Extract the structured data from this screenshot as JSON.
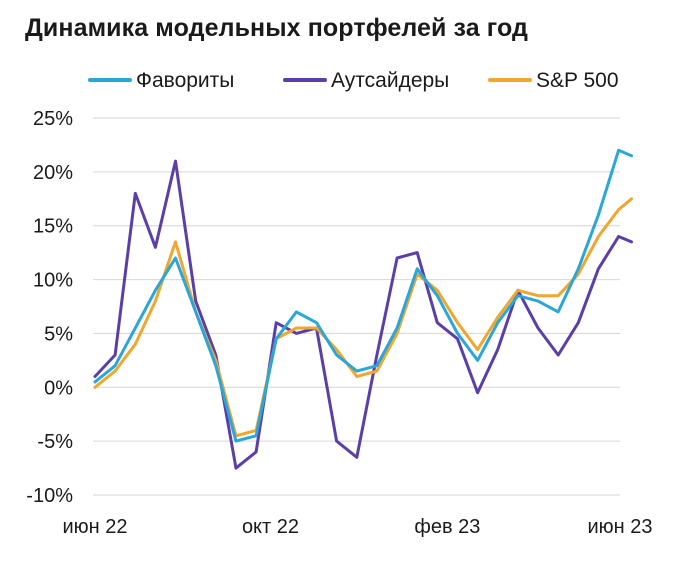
{
  "chart_data": {
    "type": "line",
    "title": "Динамика модельных портфелей за год",
    "xlabel": "",
    "ylabel": "",
    "ylim": [
      -10,
      25
    ],
    "y_ticks": [
      {
        "value": 25,
        "label": "25%"
      },
      {
        "value": 20,
        "label": "20%"
      },
      {
        "value": 15,
        "label": "15%"
      },
      {
        "value": 10,
        "label": "10%"
      },
      {
        "value": 5,
        "label": "5%"
      },
      {
        "value": 0,
        "label": "0%"
      },
      {
        "value": -5,
        "label": "-5%"
      },
      {
        "value": -10,
        "label": "-10%"
      }
    ],
    "x_ticks": [
      {
        "date": "2022-06-01",
        "label": "июн 22"
      },
      {
        "date": "2022-10-01",
        "label": "окт 22"
      },
      {
        "date": "2023-02-01",
        "label": "фев 23"
      },
      {
        "date": "2023-06-01",
        "label": "июн 23"
      }
    ],
    "grid": true,
    "legend_position": "top",
    "x": [
      "2022-06-01",
      "2022-06-15",
      "2022-06-29",
      "2022-07-13",
      "2022-07-27",
      "2022-08-10",
      "2022-08-24",
      "2022-09-07",
      "2022-09-21",
      "2022-10-05",
      "2022-10-19",
      "2022-11-02",
      "2022-11-16",
      "2022-11-30",
      "2022-12-14",
      "2022-12-28",
      "2023-01-11",
      "2023-01-25",
      "2023-02-08",
      "2023-02-22",
      "2023-03-08",
      "2023-03-22",
      "2023-04-05",
      "2023-04-19",
      "2023-05-03",
      "2023-05-17",
      "2023-05-31",
      "2023-06-09"
    ],
    "series": [
      {
        "name": "Фавориты",
        "color": "#2aa6d8",
        "values": [
          0.5,
          2.0,
          5.5,
          9.0,
          12.0,
          7.0,
          2.0,
          -5.0,
          -4.5,
          4.5,
          7.0,
          6.0,
          3.0,
          1.5,
          2.0,
          5.5,
          11.0,
          8.5,
          5.0,
          2.5,
          6.0,
          8.5,
          8.0,
          7.0,
          11.0,
          16.0,
          22.0,
          21.5
        ]
      },
      {
        "name": "Аутсайдеры",
        "color": "#5a3fa8",
        "values": [
          1.0,
          3.0,
          18.0,
          13.0,
          21.0,
          8.0,
          3.0,
          -7.5,
          -6.0,
          6.0,
          5.0,
          5.5,
          -5.0,
          -6.5,
          3.0,
          12.0,
          12.5,
          6.0,
          4.5,
          -0.5,
          3.5,
          9.0,
          5.5,
          3.0,
          6.0,
          11.0,
          14.0,
          13.5
        ]
      },
      {
        "name": "S&P 500",
        "color": "#f0a72d",
        "values": [
          0.0,
          1.5,
          4.0,
          8.0,
          13.5,
          7.0,
          2.5,
          -4.5,
          -4.0,
          4.5,
          5.5,
          5.5,
          3.5,
          1.0,
          1.5,
          5.0,
          10.5,
          9.0,
          6.0,
          3.5,
          6.5,
          9.0,
          8.5,
          8.5,
          10.5,
          14.0,
          16.5,
          17.5
        ]
      }
    ]
  }
}
